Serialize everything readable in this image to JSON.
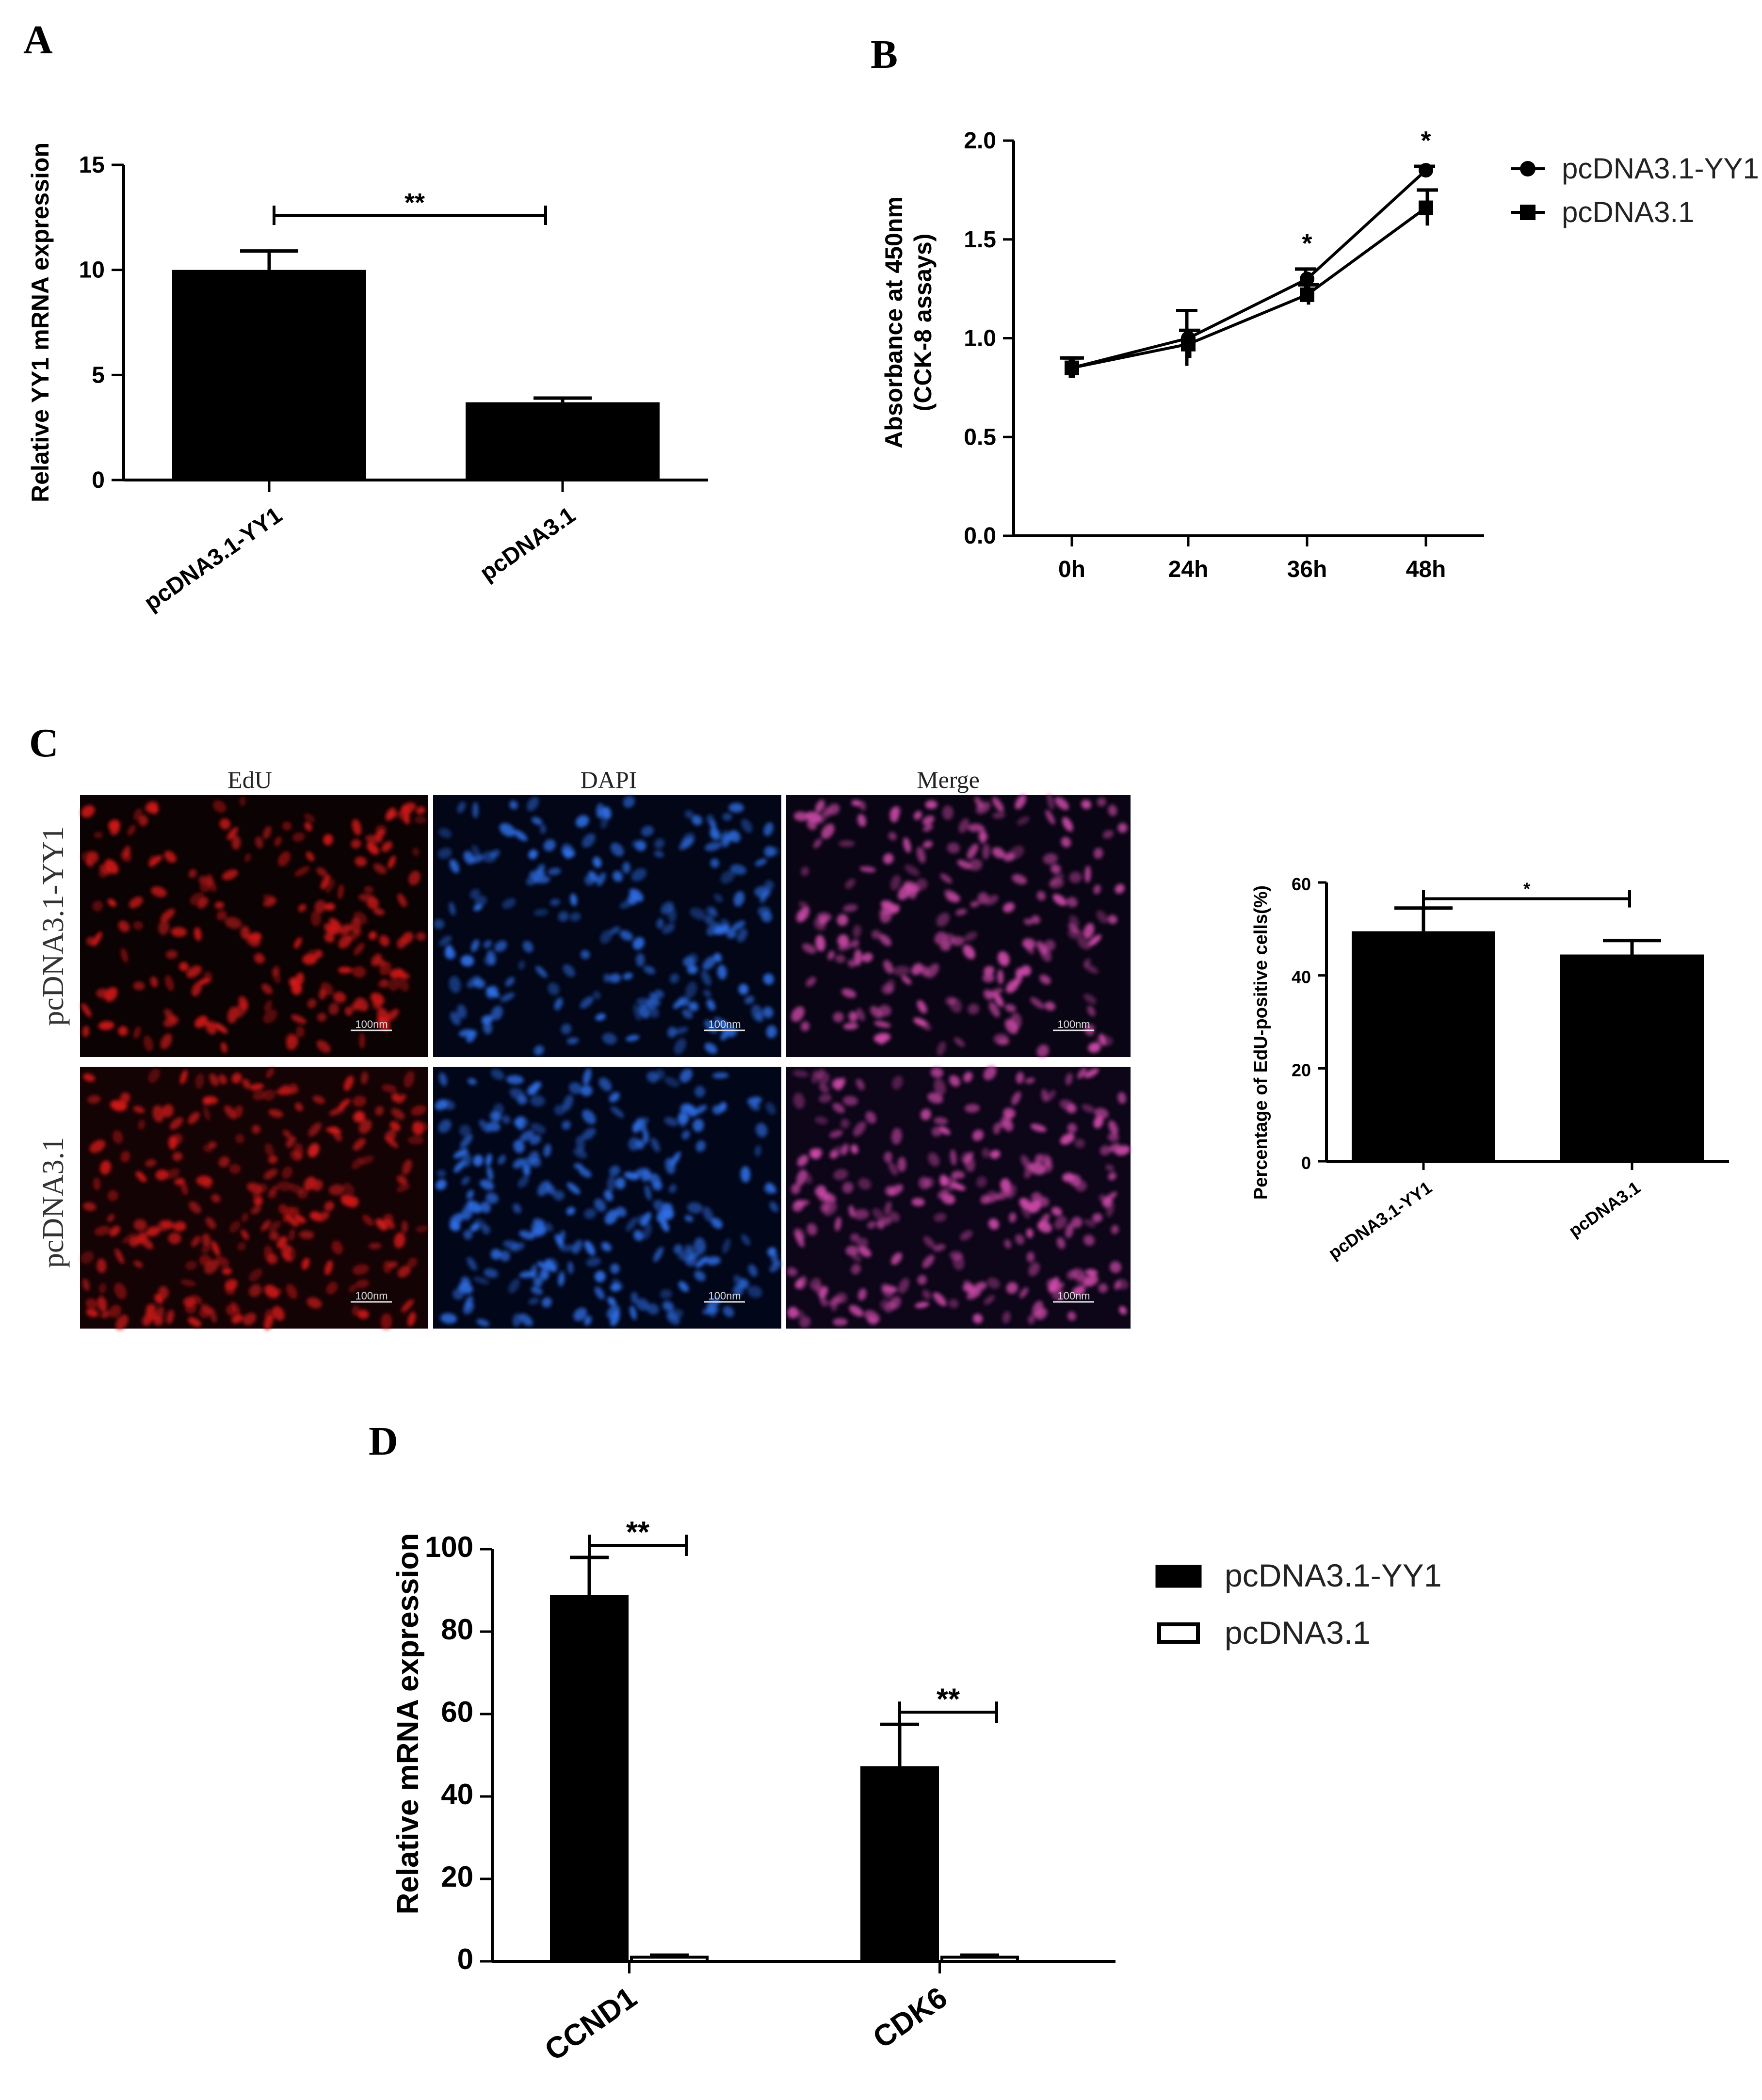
{
  "panels": {
    "A": {
      "letter": "A"
    },
    "B": {
      "letter": "B"
    },
    "C": {
      "letter": "C"
    },
    "D": {
      "letter": "D"
    }
  },
  "colors": {
    "bar_fill": "#000000",
    "edu_red": "#d11a1a",
    "dapi_blue": "#2f6fe6",
    "merge_pink": "#cc4aa8"
  },
  "chart_data": [
    {
      "id": "A",
      "type": "bar",
      "ylabel": "Relative YY1 mRNA expression",
      "categories": [
        "pcDNA3.1-YY1",
        "pcDNA3.1"
      ],
      "values": [
        10.0,
        3.7
      ],
      "errors": [
        0.9,
        0.2
      ],
      "ylim": [
        0,
        15
      ],
      "yticks": [
        "0",
        "5",
        "10",
        "15"
      ],
      "significance": "**"
    },
    {
      "id": "B",
      "type": "line",
      "ylabel_lines": [
        "Absorbance at 450nm",
        "(CCK-8 assays)"
      ],
      "x": [
        "0h",
        "24h",
        "36h",
        "48h"
      ],
      "ylim": [
        0.0,
        2.0
      ],
      "yticks": [
        "0.0",
        "0.5",
        "1.0",
        "1.5",
        "2.0"
      ],
      "series": [
        {
          "name": "pcDNA3.1-YY1",
          "marker": "circle",
          "values": [
            0.85,
            1.0,
            1.3,
            1.85
          ],
          "errors": [
            0.05,
            0.14,
            0.05,
            0.02
          ]
        },
        {
          "name": "pcDNA3.1",
          "marker": "square",
          "values": [
            0.85,
            0.97,
            1.22,
            1.66
          ],
          "errors": [
            0.05,
            0.07,
            0.05,
            0.09
          ]
        }
      ],
      "annotations": [
        {
          "x": "36h",
          "text": "*"
        },
        {
          "x": "48h",
          "text": "*"
        }
      ]
    },
    {
      "id": "C",
      "type": "bar",
      "ylabel": "Percentage of EdU-positive cells(%)",
      "categories": [
        "pcDNA3.1-YY1",
        "pcDNA3.1"
      ],
      "values": [
        49.5,
        44.5
      ],
      "errors": [
        5.0,
        3.0
      ],
      "ylim": [
        0,
        60
      ],
      "yticks": [
        "0",
        "20",
        "40",
        "60"
      ],
      "significance": "*"
    },
    {
      "id": "D",
      "type": "bar",
      "ylabel": "Relative mRNA expression",
      "categories": [
        "CCND1",
        "CDK6"
      ],
      "series": [
        {
          "name": "pcDNA3.1-YY1",
          "fill": "black",
          "values": [
            88.5,
            47.0
          ],
          "errors": [
            9.5,
            10.5
          ]
        },
        {
          "name": "pcDNA3.1",
          "fill": "white",
          "values": [
            1.0,
            1.0
          ],
          "errors": [
            0.5,
            0.5
          ]
        }
      ],
      "ylim": [
        0,
        100
      ],
      "yticks": [
        "0",
        "20",
        "40",
        "60",
        "80",
        "100"
      ],
      "significance": [
        "**",
        "**"
      ]
    }
  ],
  "microscopy": {
    "columns": [
      "EdU",
      "DAPI",
      "Merge"
    ],
    "rows": [
      "pcDNA3.1-YY1",
      "pcDNA3.1"
    ],
    "scale_bar": "100nm"
  }
}
